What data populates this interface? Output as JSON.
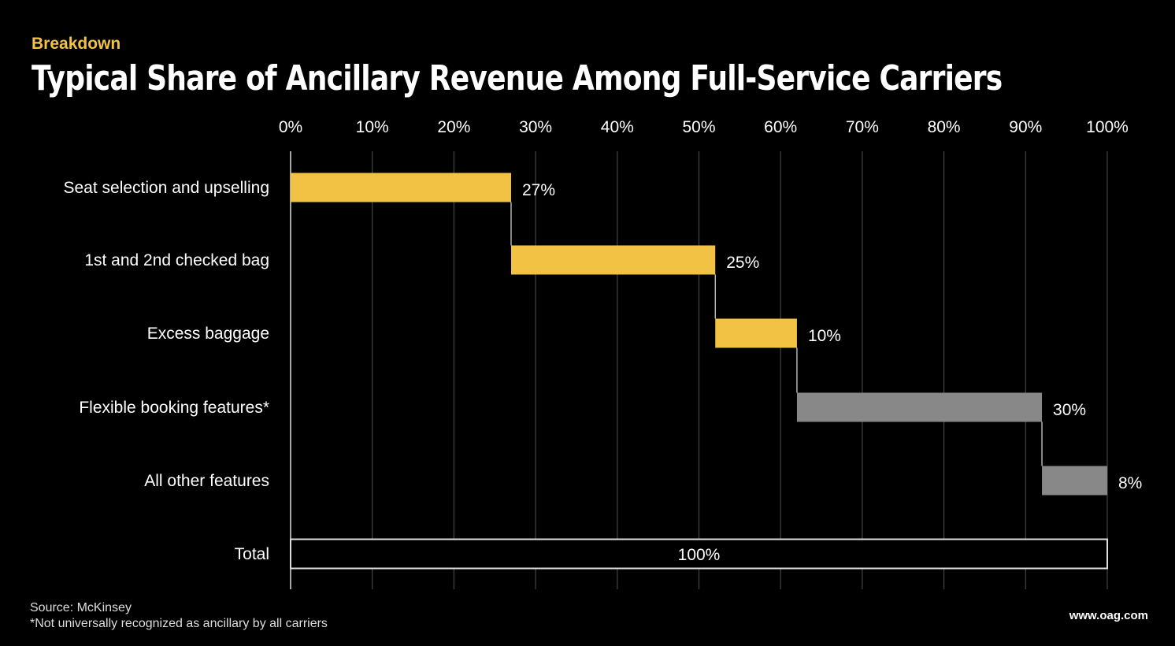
{
  "header": {
    "kicker": "Breakdown",
    "title": "Typical Share of Ancillary Revenue Among Full-Service Carriers"
  },
  "footer": {
    "source": "Source: McKinsey",
    "note": "*Not universally recognized as ancillary by all carriers",
    "url": "www.oag.com"
  },
  "chart_data": {
    "type": "bar",
    "subtype": "waterfall-horizontal",
    "title": "Typical Share of Ancillary Revenue Among Full-Service Carriers",
    "xlim": [
      0,
      100
    ],
    "x_ticks": [
      "0%",
      "10%",
      "20%",
      "30%",
      "40%",
      "50%",
      "60%",
      "70%",
      "80%",
      "90%",
      "100%"
    ],
    "x_axis_position": "top",
    "grid": true,
    "categories": [
      "Seat selection and upselling",
      "1st and 2nd checked bag",
      "Excess baggage",
      "Flexible booking features*",
      "All other features",
      "Total"
    ],
    "values": [
      27,
      25,
      10,
      30,
      8,
      100
    ],
    "labels": [
      "27%",
      "25%",
      "10%",
      "30%",
      "8%",
      "100%"
    ],
    "colors": [
      "#f2c244",
      "#f2c244",
      "#f2c244",
      "#888888",
      "#888888",
      "#000000"
    ],
    "colors_legend": {
      "yellow": "#f2c244",
      "gray": "#888888",
      "total_outline": "#ffffff",
      "background": "#000000"
    }
  }
}
